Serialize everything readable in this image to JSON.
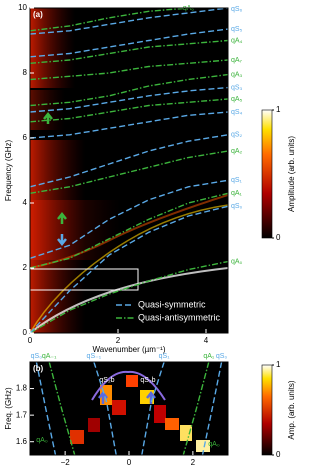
{
  "chart_data": [
    {
      "type": "line",
      "panel_label": "(a)",
      "x_label": "Wavenumber (µm⁻¹)",
      "y_label": "Frequency (GHz)",
      "xlim": [
        0,
        4.5
      ],
      "ylim": [
        0,
        10
      ],
      "xticks": [
        0,
        2,
        4
      ],
      "yticks": [
        0,
        2,
        4,
        6,
        8,
        10
      ],
      "x": [
        0,
        0.9,
        1.8,
        2.7,
        3.6,
        4.5
      ],
      "series": [
        {
          "name": "qA₀",
          "color": "#3cb43c",
          "dash": "dashdot",
          "values": [
            0,
            0.7,
            1.2,
            1.6,
            1.95,
            2.2
          ]
        },
        {
          "name": "qS₀",
          "color": "#5aa9e6",
          "dash": "dashed",
          "values": [
            0,
            1.3,
            2.4,
            3.1,
            3.6,
            3.9
          ]
        },
        {
          "name": "qA₁",
          "color": "#3cb43c",
          "dash": "dashdot",
          "values": [
            2.0,
            2.3,
            2.9,
            3.5,
            4.0,
            4.3
          ]
        },
        {
          "name": "qS₁",
          "color": "#5aa9e6",
          "dash": "dashed",
          "values": [
            2.3,
            2.7,
            3.5,
            4.1,
            4.5,
            4.7
          ]
        },
        {
          "name": "qA₂",
          "color": "#3cb43c",
          "dash": "dashdot",
          "values": [
            4.3,
            4.5,
            4.8,
            5.1,
            5.4,
            5.6
          ]
        },
        {
          "name": "qS₂",
          "color": "#5aa9e6",
          "dash": "dashed",
          "values": [
            4.5,
            4.8,
            5.2,
            5.6,
            5.9,
            6.1
          ]
        },
        {
          "name": "qS₄",
          "color": "#5aa9e6",
          "dash": "dashed",
          "values": [
            6.0,
            6.1,
            6.3,
            6.5,
            6.7,
            6.8
          ]
        },
        {
          "name": "qA₅",
          "color": "#3cb43c",
          "dash": "dashdot",
          "values": [
            6.5,
            6.6,
            6.8,
            7.0,
            7.1,
            7.2
          ]
        },
        {
          "name": "qS₃",
          "color": "#5aa9e6",
          "dash": "dashed",
          "values": [
            6.8,
            6.9,
            7.1,
            7.3,
            7.45,
            7.55
          ]
        },
        {
          "name": "qA₃",
          "color": "#3cb43c",
          "dash": "dashdot",
          "values": [
            7.0,
            7.1,
            7.3,
            7.6,
            7.8,
            7.95
          ]
        },
        {
          "name": "qA₇",
          "color": "#3cb43c",
          "dash": "dashdot",
          "values": [
            7.8,
            7.9,
            8.0,
            8.2,
            8.3,
            8.4
          ]
        },
        {
          "name": "qA₄",
          "color": "#3cb43c",
          "dash": "dashdot",
          "values": [
            8.3,
            8.4,
            8.6,
            8.8,
            8.9,
            9.0
          ]
        },
        {
          "name": "qS₅",
          "color": "#5aa9e6",
          "dash": "dashed",
          "values": [
            8.5,
            8.6,
            8.8,
            9.0,
            9.2,
            9.35
          ]
        },
        {
          "name": "qA₆",
          "color": "#3cb43c",
          "dash": "dashdot",
          "values": [
            9.3,
            9.45,
            9.7,
            9.9,
            10,
            null
          ]
        },
        {
          "name": "qS₆",
          "color": "#5aa9e6",
          "dash": "dashed",
          "values": [
            9.2,
            9.3,
            9.5,
            9.7,
            9.85,
            10
          ]
        }
      ],
      "legend": {
        "position": "lower right",
        "entries": [
          {
            "name": "Quasi-symmetric",
            "color": "#5aa9e6",
            "dash": "dashed"
          },
          {
            "name": "Quasi-antisymmetric",
            "color": "#3cb43c",
            "dash": "dashdot"
          }
        ]
      },
      "colorbar": {
        "label": "Amplitude (arb. units)",
        "range": [
          0,
          1
        ],
        "ticks": [
          0,
          1
        ]
      }
    },
    {
      "type": "line",
      "panel_label": "(b)",
      "y_label": "Freq. (GHz)",
      "xlim": [
        -3.1,
        3.1
      ],
      "ylim": [
        1.55,
        1.9
      ],
      "xticks": [
        {
          "value": -2,
          "label": "−2"
        },
        0,
        2
      ],
      "yticks": [
        1.6,
        1.7,
        1.8
      ],
      "series": [
        {
          "name": "qS₀",
          "color": "#5aa9e6",
          "dash": "dashed",
          "x": [
            -2.9,
            -2.6,
            -2.3
          ],
          "values": [
            1.9,
            1.72,
            1.55
          ]
        },
        {
          "name": "qA₋₁",
          "color": "#3cb43c",
          "dash": "dashdot",
          "x": [
            -2.5,
            -2.1,
            -1.7
          ],
          "values": [
            1.9,
            1.72,
            1.55
          ]
        },
        {
          "name": "qS₋₁",
          "color": "#5aa9e6",
          "dash": "dashed",
          "x": [
            -1.1,
            -0.7,
            -0.4
          ],
          "values": [
            1.9,
            1.75,
            1.55
          ]
        },
        {
          "name": "qS₁",
          "color": "#5aa9e6",
          "dash": "dashed",
          "x": [
            1.1,
            0.7,
            0.4
          ],
          "values": [
            1.9,
            1.75,
            1.55
          ]
        },
        {
          "name": "qA₁",
          "color": "#3cb43c",
          "dash": "dashdot",
          "x": [
            2.5,
            2.1,
            1.7
          ],
          "values": [
            1.9,
            1.72,
            1.55
          ]
        },
        {
          "name": "qS₀",
          "color": "#5aa9e6",
          "dash": "dashed",
          "x": [
            2.9,
            2.6,
            2.3
          ],
          "values": [
            1.9,
            1.72,
            1.55
          ]
        }
      ],
      "annotations": [
        "qS₂b",
        "qS₂b",
        "qA₀",
        "qA₀"
      ],
      "colorbar": {
        "label": "Amp. (arb. units)",
        "range": [
          0,
          1
        ],
        "ticks": [
          0,
          1
        ]
      }
    }
  ]
}
